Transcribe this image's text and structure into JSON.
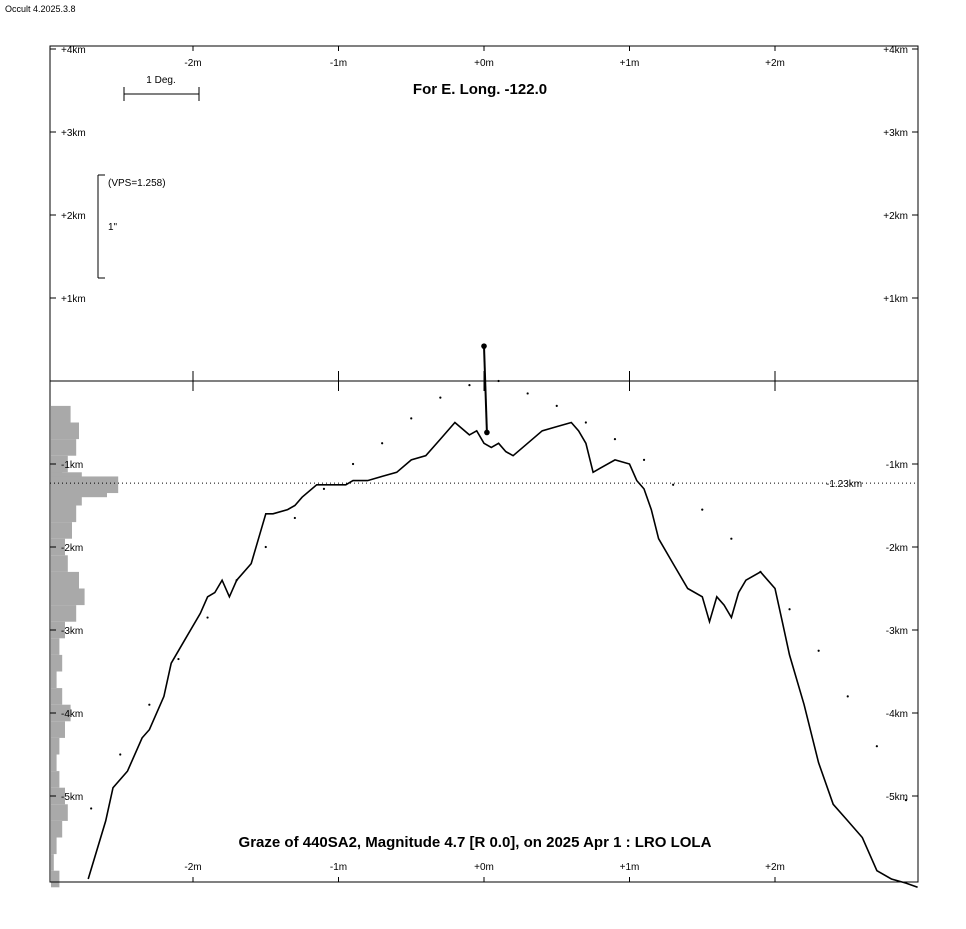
{
  "app_title": "Occult 4.2025.3.8",
  "chart_data": {
    "type": "line",
    "title": "For E. Long. -122.0",
    "footer": "Graze of  440SA2,  Magnitude 4.7 [R 0.0],  on 2025 Apr  1  :  LRO LOLA",
    "x_ticks": [
      "-2m",
      "-1m",
      "+0m",
      "+1m",
      "+2m"
    ],
    "x_tick_values": [
      -2,
      -1,
      0,
      1,
      2
    ],
    "y_ticks_left": [
      "+4km",
      "+3km",
      "+2km",
      "+1km",
      "-1km",
      "-2km",
      "-3km",
      "-4km",
      "-5km"
    ],
    "y_ticks_right": [
      "+4km",
      "+3km",
      "+2km",
      "+1km",
      "-1km",
      "-2km",
      "-3km",
      "-4km",
      "-5km"
    ],
    "y_tick_values": [
      4,
      3,
      2,
      1,
      -1,
      -2,
      -3,
      -4,
      -5
    ],
    "xlim": [
      -3.0,
      3.0
    ],
    "ylim": [
      -6.05,
      4.05
    ],
    "scale_bar_label": "1 Deg.",
    "vps_label": "(VPS=1.258)",
    "arcsec_label": "1\"",
    "reference_line_label": "-1.23km",
    "reference_line_value": -1.23,
    "limb_profile": {
      "x": [
        -2.72,
        -2.6,
        -2.55,
        -2.45,
        -2.35,
        -2.3,
        -2.2,
        -2.15,
        -2.05,
        -1.95,
        -1.9,
        -1.85,
        -1.8,
        -1.75,
        -1.7,
        -1.6,
        -1.55,
        -1.5,
        -1.45,
        -1.35,
        -1.3,
        -1.25,
        -1.15,
        -1.05,
        -0.95,
        -0.9,
        -0.8,
        -0.7,
        -0.6,
        -0.5,
        -0.4,
        -0.3,
        -0.2,
        -0.1,
        -0.05,
        0.0,
        0.05,
        0.1,
        0.15,
        0.2,
        0.3,
        0.4,
        0.5,
        0.6,
        0.65,
        0.7,
        0.75,
        0.8,
        0.9,
        1.0,
        1.05,
        1.1,
        1.15,
        1.2,
        1.3,
        1.4,
        1.5,
        1.55,
        1.6,
        1.65,
        1.7,
        1.75,
        1.8,
        1.9,
        2.0,
        2.05,
        2.1,
        2.2,
        2.3,
        2.4,
        2.5,
        2.6,
        2.7,
        2.8,
        2.9,
        2.98
      ],
      "y": [
        -6.0,
        -5.3,
        -4.9,
        -4.7,
        -4.3,
        -4.2,
        -3.8,
        -3.4,
        -3.1,
        -2.8,
        -2.6,
        -2.55,
        -2.4,
        -2.6,
        -2.4,
        -2.2,
        -1.9,
        -1.6,
        -1.6,
        -1.55,
        -1.5,
        -1.4,
        -1.25,
        -1.25,
        -1.25,
        -1.2,
        -1.2,
        -1.15,
        -1.1,
        -0.95,
        -0.9,
        -0.7,
        -0.5,
        -0.65,
        -0.6,
        -0.75,
        -0.8,
        -0.75,
        -0.85,
        -0.9,
        -0.75,
        -0.6,
        -0.55,
        -0.5,
        -0.6,
        -0.75,
        -1.1,
        -1.05,
        -0.95,
        -1.0,
        -1.2,
        -1.3,
        -1.55,
        -1.9,
        -2.2,
        -2.5,
        -2.6,
        -2.9,
        -2.6,
        -2.7,
        -2.85,
        -2.55,
        -2.4,
        -2.3,
        -2.5,
        -2.9,
        -3.3,
        -3.9,
        -4.6,
        -5.1,
        -5.3,
        -5.5,
        -5.9,
        -6.0,
        -6.05,
        -6.1
      ]
    },
    "mean_limb_dots": {
      "x": [
        -2.7,
        -2.5,
        -2.3,
        -2.1,
        -1.9,
        -1.7,
        -1.5,
        -1.3,
        -1.1,
        -0.9,
        -0.7,
        -0.5,
        -0.3,
        -0.1,
        0.1,
        0.3,
        0.5,
        0.7,
        0.9,
        1.1,
        1.3,
        1.5,
        1.7,
        1.9,
        2.1,
        2.3,
        2.5,
        2.7,
        2.9
      ],
      "y": [
        -5.15,
        -4.5,
        -3.9,
        -3.35,
        -2.85,
        -2.4,
        -2.0,
        -1.65,
        -1.3,
        -1.0,
        -0.75,
        -0.45,
        -0.2,
        -0.05,
        0.0,
        -0.15,
        -0.3,
        -0.5,
        -0.7,
        -0.95,
        -1.25,
        -1.55,
        -1.9,
        -2.3,
        -2.75,
        -3.25,
        -3.8,
        -4.4,
        -5.05
      ]
    },
    "star_path": {
      "x": [
        0.0,
        0.02
      ],
      "y": [
        0.42,
        -0.62
      ]
    },
    "histogram": {
      "y": [
        -0.4,
        -0.6,
        -0.8,
        -1.0,
        -1.1,
        -1.2,
        -1.25,
        -1.3,
        -1.4,
        -1.6,
        -1.8,
        -2.0,
        -2.2,
        -2.4,
        -2.6,
        -2.8,
        -3.0,
        -3.2,
        -3.4,
        -3.6,
        -3.8,
        -4.0,
        -4.2,
        -4.4,
        -4.6,
        -4.8,
        -5.0,
        -5.2,
        -5.4,
        -5.6,
        -5.8,
        -6.0
      ],
      "counts": [
        14,
        20,
        18,
        12,
        8,
        22,
        48,
        40,
        22,
        18,
        15,
        10,
        12,
        20,
        24,
        18,
        10,
        6,
        8,
        4,
        8,
        14,
        10,
        6,
        4,
        6,
        10,
        12,
        8,
        4,
        2,
        6
      ]
    }
  }
}
